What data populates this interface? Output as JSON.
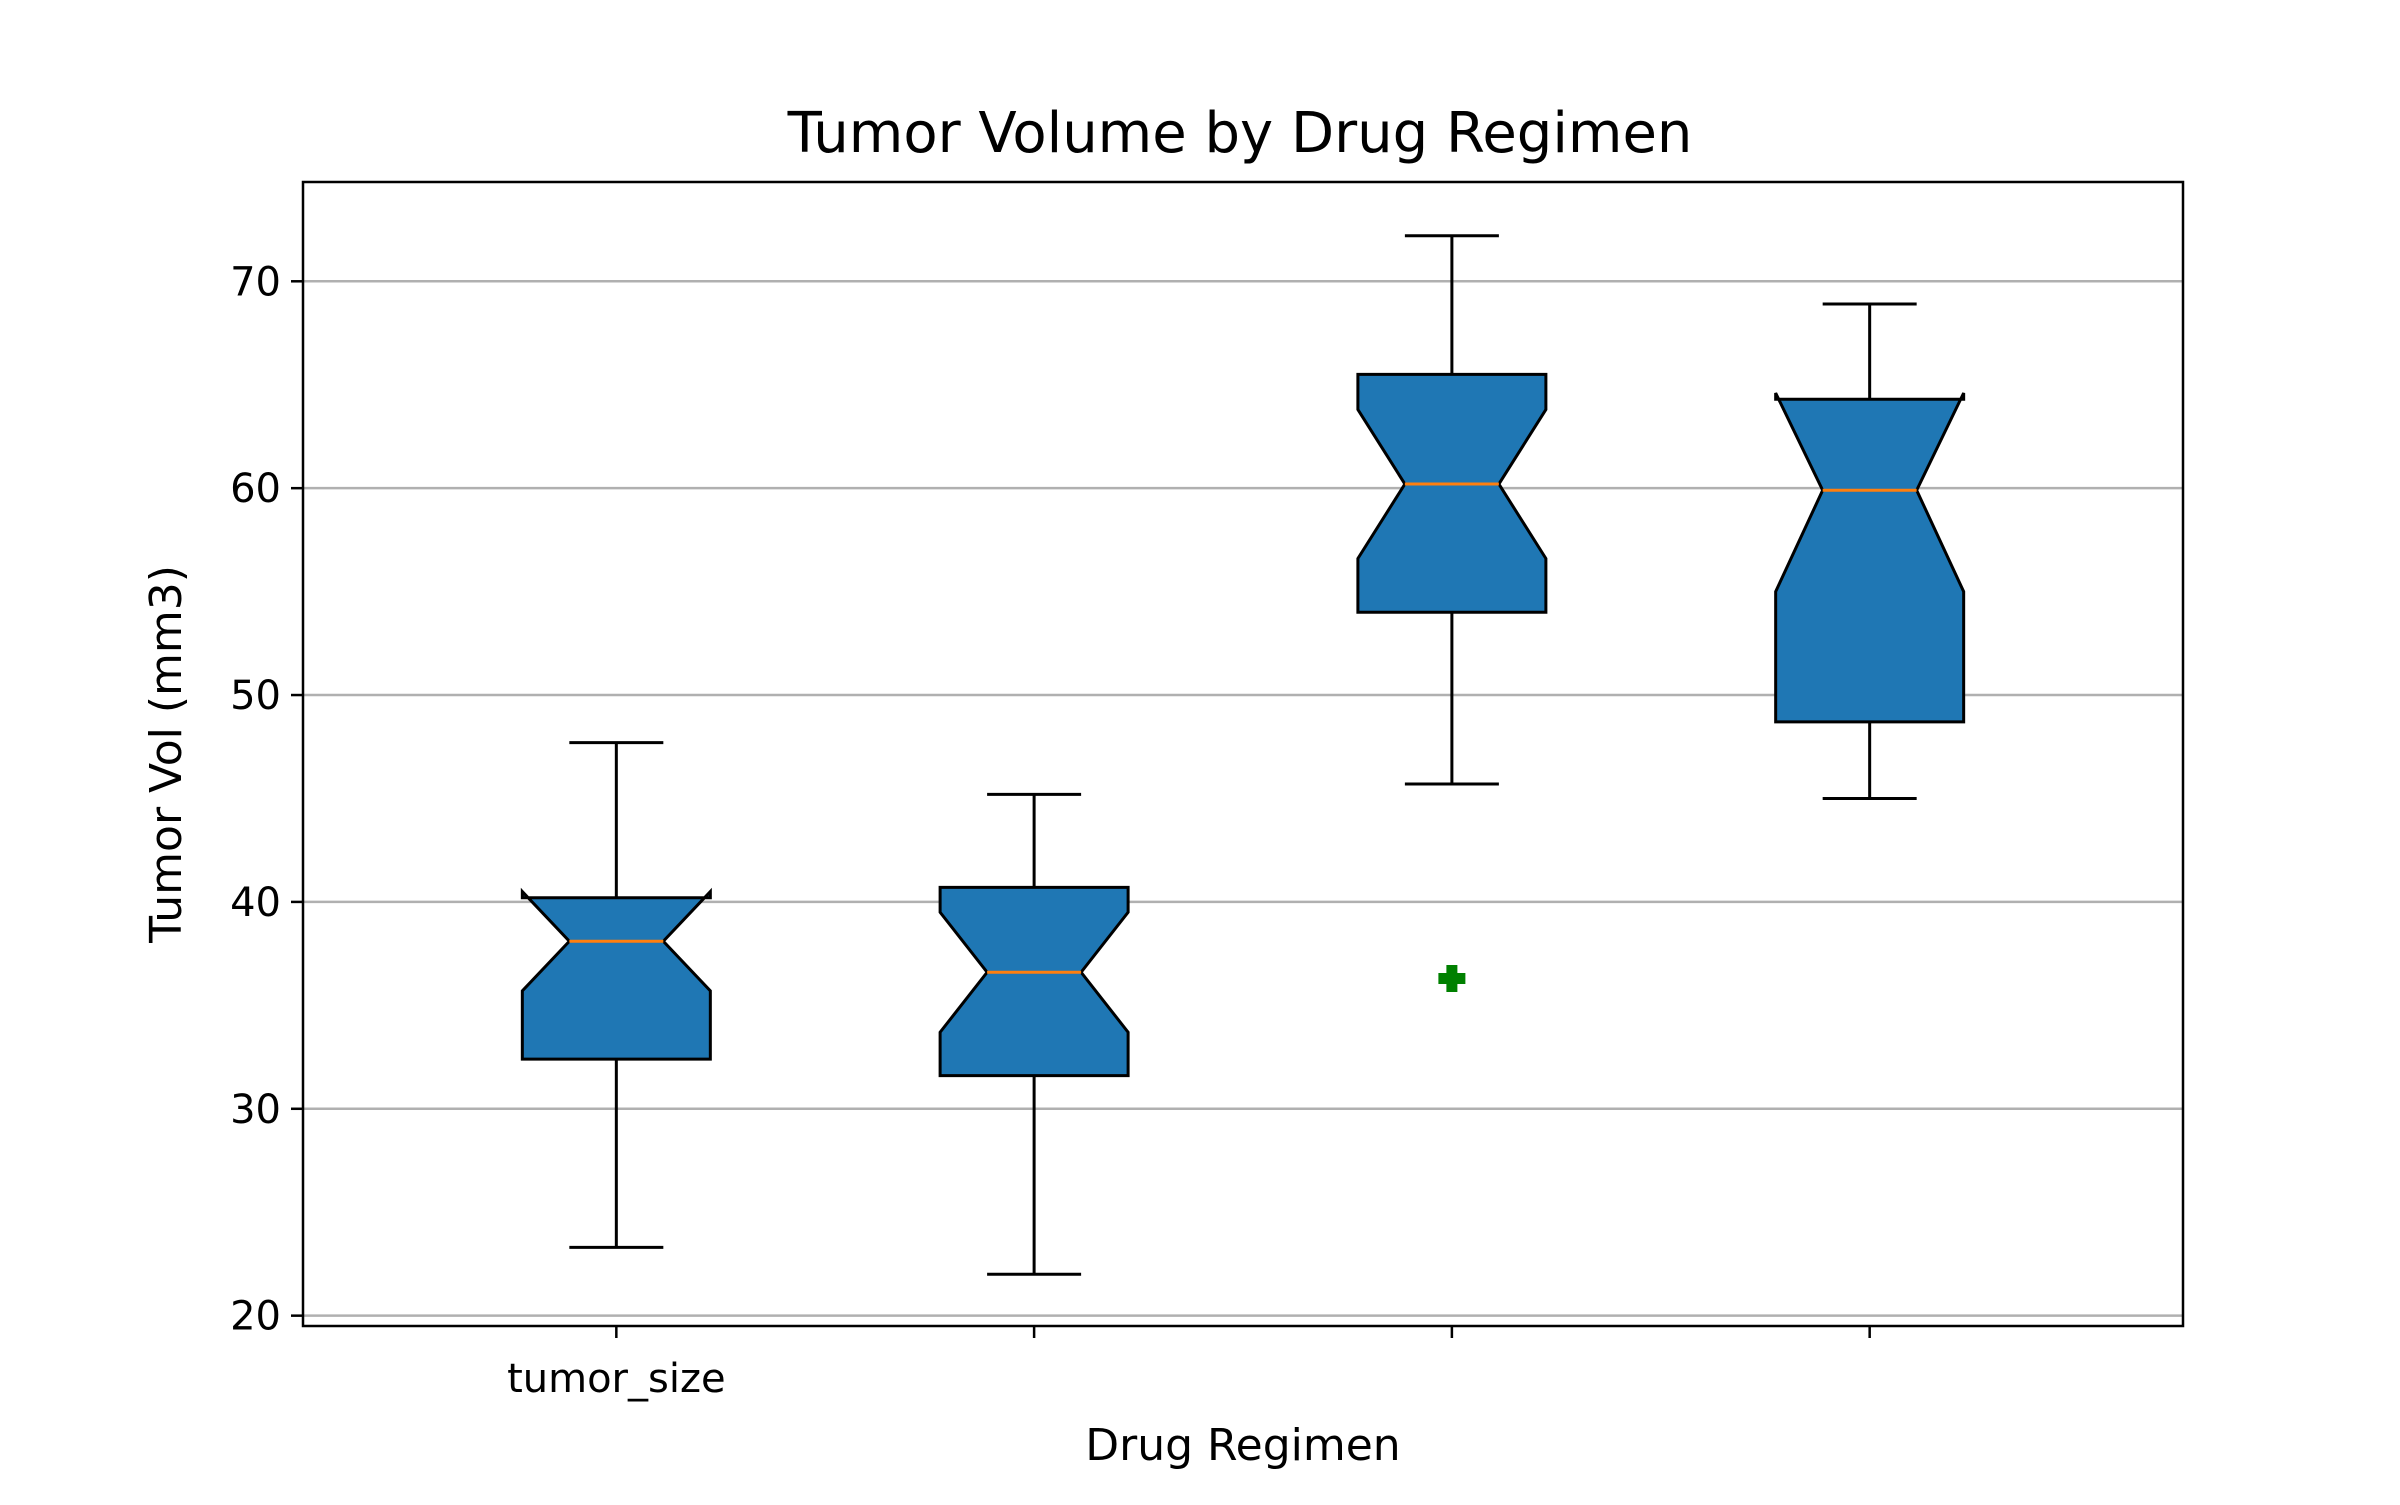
{
  "chart_data": {
    "type": "box",
    "title": "Tumor Volume by Drug Regimen",
    "xlabel": "Drug Regimen",
    "ylabel": "Tumor Vol (mm3)",
    "ylim": [
      19.5,
      74.8
    ],
    "yticks": [
      20,
      30,
      40,
      50,
      60,
      70
    ],
    "xtick_labels": [
      "tumor_size",
      "",
      "",
      ""
    ],
    "grid": "y",
    "notched": true,
    "box_color": "#1f77b4",
    "median_color": "#ff7f0e",
    "flier_color": "#008000",
    "flier_marker": "plus",
    "boxes": [
      {
        "whisker_low": 23.3,
        "q1": 32.4,
        "median": 38.1,
        "q3": 40.2,
        "whisker_high": 47.7,
        "notch_low": 35.7,
        "notch_high": 40.5,
        "fliers": []
      },
      {
        "whisker_low": 22.0,
        "q1": 31.6,
        "median": 36.6,
        "q3": 40.7,
        "whisker_high": 45.2,
        "notch_low": 33.7,
        "notch_high": 39.5,
        "fliers": []
      },
      {
        "whisker_low": 45.7,
        "q1": 54.0,
        "median": 60.2,
        "q3": 65.5,
        "whisker_high": 72.2,
        "notch_low": 56.6,
        "notch_high": 63.8,
        "fliers": [
          36.3
        ]
      },
      {
        "whisker_low": 45.0,
        "q1": 48.7,
        "median": 59.9,
        "q3": 64.3,
        "whisker_high": 68.9,
        "notch_low": 55.0,
        "notch_high": 64.6,
        "fliers": []
      }
    ]
  }
}
